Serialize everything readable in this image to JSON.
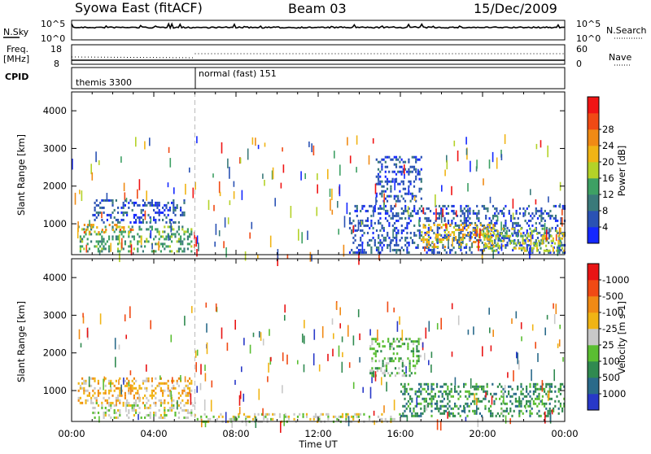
{
  "header": {
    "station": "Syowa East (fitACF)",
    "beam": "Beam 03",
    "date": "15/Dec/2009"
  },
  "top_panel": {
    "left_label": "N.Sky",
    "right_label": "N.Search",
    "left_ticks": [
      "10^5",
      "10^0"
    ],
    "right_ticks": [
      "10^5",
      "10^0"
    ]
  },
  "freq_panel": {
    "left_label": "Freq.",
    "left_unit": "[MHz]",
    "right_label": "Nave",
    "left_ticks": [
      "18",
      "8"
    ],
    "right_ticks": [
      "60",
      "0"
    ]
  },
  "cpid_panel": {
    "label": "CPID",
    "modes": [
      {
        "name": "themis 3300",
        "start_hour": 0
      },
      {
        "name": "normal (fast) 151",
        "start_hour": 6
      }
    ]
  },
  "chart_data": [
    {
      "type": "heatmap",
      "name": "power",
      "xlabel": "Time UT",
      "ylabel": "Slant Range [km]",
      "xlim": [
        0,
        24
      ],
      "ylim": [
        180,
        4500
      ],
      "y_ticks": [
        1000,
        2000,
        3000,
        4000
      ],
      "y_tick_labels": [
        "1000",
        "2000",
        "3000",
        "4000"
      ],
      "colorbar": {
        "label": "Power [dB]",
        "ticks": [
          "4",
          "8",
          "12",
          "16",
          "20",
          "24",
          "28"
        ],
        "colors": [
          "#1428ff",
          "#2a52b4",
          "#3a7a7a",
          "#3ea064",
          "#b4d228",
          "#f0b414",
          "#f08a14",
          "#f04a14",
          "#f01414"
        ]
      },
      "regions": [
        {
          "t0": 0.3,
          "t1": 5.8,
          "r0": 300,
          "r1": 950,
          "color_idx": 3
        },
        {
          "t0": 0.5,
          "t1": 3.0,
          "r0": 750,
          "r1": 1000,
          "color_idx": 6
        },
        {
          "t0": 1.0,
          "t1": 5.5,
          "r0": 1050,
          "r1": 1650,
          "color_idx": 1
        },
        {
          "t0": 13.5,
          "t1": 24.0,
          "r0": 250,
          "r1": 1500,
          "color_idx": 1
        },
        {
          "t0": 14.8,
          "t1": 17.0,
          "r0": 1600,
          "r1": 2800,
          "color_idx": 1
        },
        {
          "t0": 17.0,
          "t1": 20.5,
          "r0": 400,
          "r1": 1000,
          "color_idx": 5
        },
        {
          "t0": 20.0,
          "t1": 24.0,
          "r0": 300,
          "r1": 900,
          "color_idx": 4
        }
      ]
    },
    {
      "type": "heatmap",
      "name": "velocity",
      "xlabel": "Time UT",
      "ylabel": "Slant Range [km]",
      "xlim": [
        0,
        24
      ],
      "ylim": [
        180,
        4500
      ],
      "y_ticks": [
        1000,
        2000,
        3000,
        4000
      ],
      "y_tick_labels": [
        "1000",
        "2000",
        "3000",
        "4000"
      ],
      "colorbar": {
        "label": "Velocity [m s-1]",
        "ticks": [
          "1000",
          "500",
          "100",
          "25",
          "-25",
          "-100",
          "-500",
          "-1000"
        ],
        "colors": [
          "#2838c8",
          "#2a6a8a",
          "#308a50",
          "#5abe32",
          "#c8c8c8",
          "#f0b414",
          "#f08a14",
          "#f04a14",
          "#e81414"
        ]
      },
      "regions": [
        {
          "t0": 0.3,
          "t1": 5.8,
          "r0": 650,
          "r1": 1350,
          "color_idx": 5
        },
        {
          "t0": 1.0,
          "t1": 6.0,
          "r0": 300,
          "r1": 700,
          "color_idx": 4
        },
        {
          "t0": 6.0,
          "t1": 16.0,
          "r0": 200,
          "r1": 400,
          "color_idx": 4
        },
        {
          "t0": 14.5,
          "t1": 17.0,
          "r0": 1400,
          "r1": 2400,
          "color_idx": 3
        },
        {
          "t0": 16.0,
          "t1": 24.0,
          "r0": 300,
          "r1": 1200,
          "color_idx": 2
        }
      ]
    }
  ],
  "time_axis": {
    "labels": [
      "00:00",
      "04:00",
      "08:00",
      "12:00",
      "16:00",
      "20:00",
      "00:00"
    ],
    "title": "Time UT"
  }
}
